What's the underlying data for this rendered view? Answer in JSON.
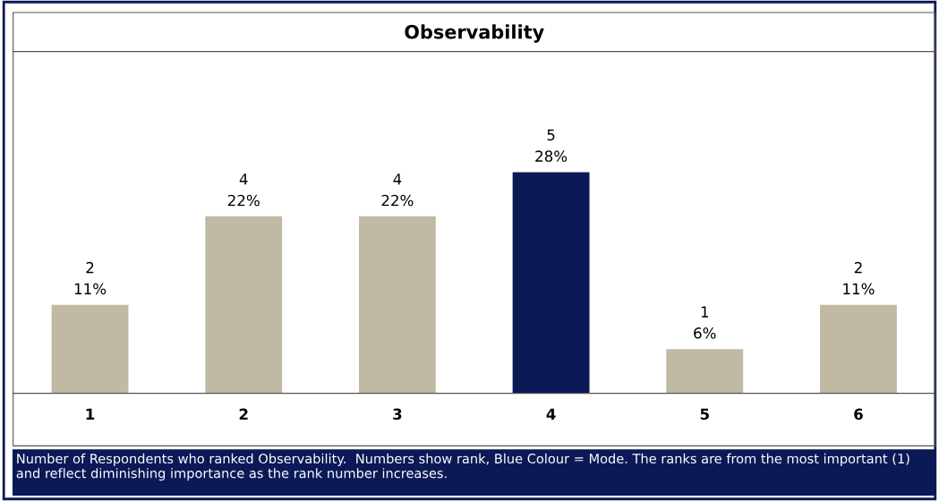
{
  "chart_data": {
    "type": "bar",
    "title": "Observability",
    "categories": [
      "1",
      "2",
      "3",
      "4",
      "5",
      "6"
    ],
    "values": [
      2,
      4,
      4,
      5,
      1,
      2
    ],
    "colors": [
      "#c0b9a3",
      "#c0b9a3",
      "#c0b9a3",
      "#0b1957",
      "#c0b9a3",
      "#c0b9a3"
    ],
    "value_labels": [
      "2\n11%",
      "4\n22%",
      "4\n22%",
      "5\n28%",
      "1\n6%",
      "2\n11%"
    ],
    "annotations": [
      "Number of Respondents who ranked Observability.  Numbers show rank, Blue Colour = Mode. The ranks are from the most important (1) and reflect diminishing importance as the rank number increases."
    ],
    "grid": false,
    "legend": false
  }
}
